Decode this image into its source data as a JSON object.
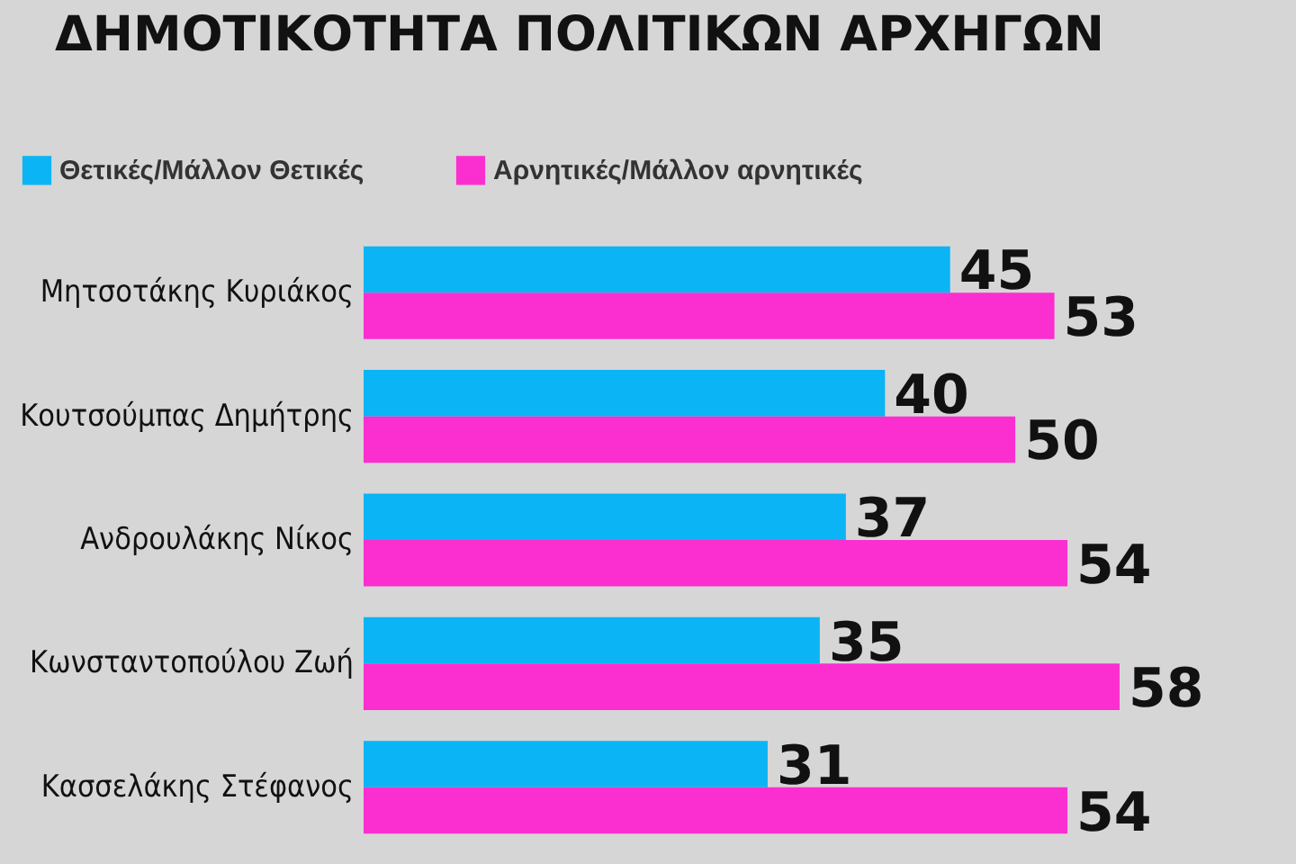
{
  "chart_data": {
    "type": "bar",
    "orientation": "horizontal",
    "title": "ΔΗΜΟΤΙΚΟΤΗΤΑ ΠΟΛΙΤΙΚΩΝ ΑΡΧΗΓΩΝ",
    "categories": [
      "Μητσοτάκης Κυριάκος",
      "Κουτσούμπας Δημήτρης",
      "Ανδρουλάκης Νίκος",
      "Κωνσταντοπούλου Ζωή",
      "Κασσελάκης Στέφανος"
    ],
    "series": [
      {
        "name": "Θετικές/Μάλλον Θετικές",
        "color": "#0bb4f5",
        "values": [
          45,
          40,
          37,
          35,
          31
        ]
      },
      {
        "name": "Αρνητικές/Μάλλον αρνητικές",
        "color": "#fb2fcf",
        "values": [
          53,
          50,
          54,
          58,
          54
        ]
      }
    ],
    "data_labels": true,
    "legend": "top left"
  }
}
